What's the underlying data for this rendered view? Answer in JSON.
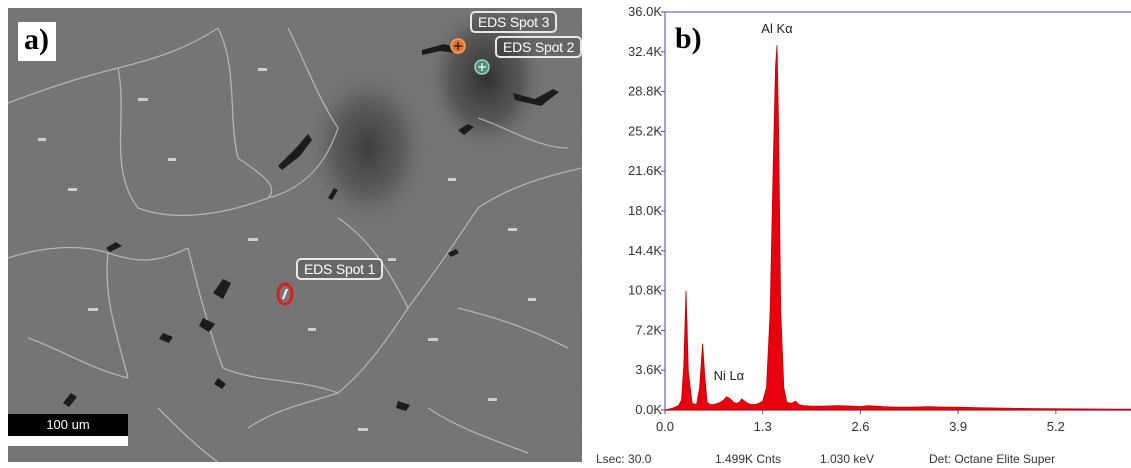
{
  "panel_a": {
    "label": "a)",
    "eds_spots": [
      "EDS Spot 1",
      "EDS Spot 2",
      "EDS Spot 3"
    ],
    "scale_bar": "100 um"
  },
  "panel_b": {
    "label": "b)",
    "status": {
      "lsec": "Lsec: 30.0",
      "counts": "1.499K Cnts",
      "energy": "1.030 keV",
      "detector": "Det: Octane Elite Super"
    }
  },
  "chart_data": {
    "type": "line",
    "title": "",
    "xlabel": "",
    "ylabel": "",
    "xlim": [
      0,
      6.2
    ],
    "ylim": [
      0,
      36000
    ],
    "x_ticks": [
      "0.0",
      "1.3",
      "2.6",
      "3.9",
      "5.2"
    ],
    "x_tick_values": [
      0,
      1.3,
      2.6,
      3.9,
      5.2
    ],
    "y_ticks": [
      "0.0K",
      "3.6K",
      "7.2K",
      "10.8K",
      "14.4K",
      "18.0K",
      "21.6K",
      "25.2K",
      "28.8K",
      "32.4K",
      "36.0K"
    ],
    "y_tick_values": [
      0,
      3600,
      7200,
      10800,
      14400,
      18000,
      21600,
      25200,
      28800,
      32400,
      36000
    ],
    "grid": false,
    "fill_color": "#e8000e",
    "axis_color": "#8a7fd9",
    "annotations": [
      {
        "text": "Al Kα",
        "x": 1.49,
        "y": 33200
      },
      {
        "text": "Ni Lα",
        "x": 0.85,
        "y": 1800
      }
    ],
    "series": [
      {
        "x": [
          0.0,
          0.1,
          0.18,
          0.22,
          0.25,
          0.28,
          0.31,
          0.36,
          0.42,
          0.46,
          0.5,
          0.53,
          0.56,
          0.6,
          0.65,
          0.7,
          0.74,
          0.78,
          0.82,
          0.87,
          0.91,
          0.95,
          0.99,
          1.02,
          1.06,
          1.1,
          1.15,
          1.2,
          1.25,
          1.3,
          1.35,
          1.4,
          1.44,
          1.47,
          1.49,
          1.51,
          1.54,
          1.58,
          1.62,
          1.68,
          1.74,
          1.78,
          1.84,
          1.95,
          2.1,
          2.3,
          2.5,
          2.6,
          2.7,
          2.9,
          3.1,
          3.3,
          3.5,
          3.7,
          3.9,
          4.2,
          4.6,
          5.0,
          5.5,
          6.0,
          6.2
        ],
        "y": [
          0,
          150,
          400,
          900,
          4000,
          10800,
          3500,
          600,
          500,
          2000,
          6000,
          3000,
          700,
          500,
          500,
          600,
          700,
          900,
          1200,
          1000,
          700,
          600,
          700,
          1000,
          800,
          600,
          500,
          500,
          600,
          800,
          2000,
          9000,
          22000,
          31000,
          33000,
          26000,
          9000,
          2000,
          700,
          600,
          800,
          500,
          400,
          350,
          350,
          400,
          350,
          300,
          400,
          300,
          250,
          250,
          300,
          250,
          250,
          200,
          150,
          120,
          100,
          80,
          80
        ]
      }
    ]
  }
}
